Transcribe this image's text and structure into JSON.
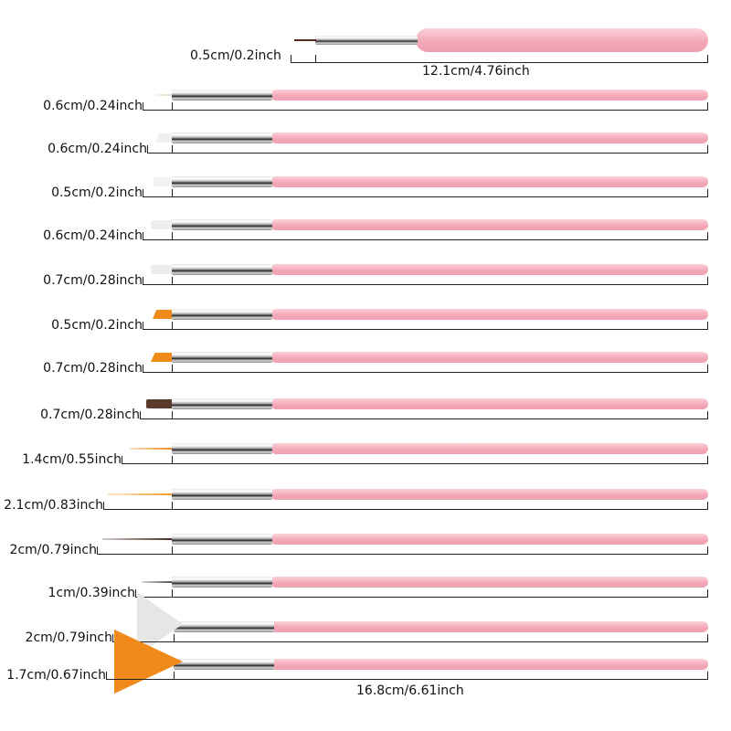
{
  "top_brush": {
    "tip_size": "0.5cm/0.2inch",
    "length": "12.1cm/4.76inch"
  },
  "brushes": [
    {
      "size": "0.6cm/0.24inch",
      "tip": "fine",
      "color": "#e8dcc0"
    },
    {
      "size": "0.6cm/0.24inch",
      "tip": "angled",
      "color": "#f0f0f0"
    },
    {
      "size": "0.5cm/0.2inch",
      "tip": "flat",
      "color": "#f2f2f2"
    },
    {
      "size": "0.6cm/0.24inch",
      "tip": "flat",
      "color": "#eeeeee"
    },
    {
      "size": "0.7cm/0.28inch",
      "tip": "flat",
      "color": "#ececec"
    },
    {
      "size": "0.5cm/0.2inch",
      "tip": "angled",
      "color": "#f08a1a"
    },
    {
      "size": "0.7cm/0.28inch",
      "tip": "angled",
      "color": "#f08a1a"
    },
    {
      "size": "0.7cm/0.28inch",
      "tip": "flat",
      "color": "#5a3a2a"
    },
    {
      "size": "1.4cm/0.55inch",
      "tip": "liner",
      "color": "#f08a1a"
    },
    {
      "size": "2.1cm/0.83inch",
      "tip": "liner",
      "color": "#f29a1a"
    },
    {
      "size": "2cm/0.79inch",
      "tip": "liner",
      "color": "#4a2a20"
    },
    {
      "size": "1cm/0.39inch",
      "tip": "dotting",
      "color": "#555555"
    },
    {
      "size": "2cm/0.79inch",
      "tip": "fan",
      "color": "#e6e6e6"
    },
    {
      "size": "1.7cm/0.67inch",
      "tip": "fan",
      "color": "#f08a1a"
    }
  ],
  "bottom_length": "16.8cm/6.61inch",
  "colors": {
    "handle": "#f4a9b8",
    "ferrule": "#c0c0c0"
  }
}
